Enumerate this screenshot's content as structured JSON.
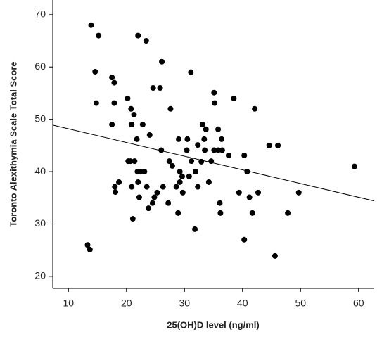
{
  "chart_data": {
    "type": "scatter",
    "xlabel": "25(OH)D level (ng/ml)",
    "ylabel": "Toronto Alexithymia Scale Total Score",
    "xlim": [
      7.3,
      62.7
    ],
    "ylim": [
      17.7,
      72.8
    ],
    "xticks": [
      10,
      20,
      30,
      40,
      50,
      60
    ],
    "yticks": [
      20,
      30,
      40,
      50,
      60,
      70
    ],
    "color": "#000000",
    "x": [
      13.9,
      15.2,
      14.6,
      14.8,
      17.5,
      17.9,
      17.9,
      17.5,
      13.3,
      13.7,
      18.0,
      18.1,
      18.7,
      20.2,
      20.8,
      20.9,
      21.3,
      20.3,
      20.7,
      21.4,
      20.9,
      21.1,
      22.0,
      23.4,
      21.8,
      22.8,
      24.0,
      21.9,
      22.4,
      23.1,
      22.0,
      22.2,
      23.5,
      23.8,
      24.5,
      24.8,
      25.3,
      24.6,
      25.8,
      26.1,
      26.0,
      26.3,
      27.2,
      27.6,
      27.4,
      27.9,
      28.6,
      28.9,
      29.0,
      29.2,
      29.2,
      29.6,
      29.7,
      30.5,
      30.4,
      30.8,
      31.1,
      31.2,
      31.9,
      32.3,
      31.8,
      32.3,
      32.9,
      33.1,
      33.7,
      33.4,
      33.5,
      34.2,
      34.6,
      35.2,
      35.1,
      35.1,
      35.8,
      35.8,
      36.4,
      36.1,
      36.2,
      36.5,
      37.6,
      38.5,
      39.4,
      40.3,
      40.3,
      40.8,
      41.2,
      41.7,
      42.1,
      42.7,
      44.6,
      46.1,
      45.6,
      47.8,
      49.7,
      59.3
    ],
    "y": [
      68.0,
      66.0,
      59.1,
      53.1,
      58.0,
      57.0,
      53.1,
      49.0,
      26.0,
      25.1,
      37.1,
      36.1,
      38.0,
      54.0,
      52.0,
      49.0,
      50.9,
      42.0,
      42.0,
      42.0,
      37.1,
      31.0,
      66.0,
      65.0,
      46.2,
      49.0,
      47.0,
      40.0,
      40.0,
      40.0,
      38.0,
      35.1,
      37.1,
      33.0,
      34.0,
      35.1,
      36.0,
      56.0,
      56.0,
      61.0,
      44.1,
      37.1,
      34.0,
      52.0,
      42.0,
      41.1,
      37.1,
      32.1,
      46.2,
      40.0,
      38.0,
      39.1,
      36.0,
      46.2,
      44.1,
      39.1,
      59.0,
      42.0,
      40.0,
      45.1,
      29.0,
      37.1,
      41.9,
      49.0,
      48.1,
      46.2,
      44.1,
      38.0,
      42.0,
      53.1,
      55.1,
      44.1,
      48.1,
      44.1,
      46.2,
      34.0,
      32.1,
      44.1,
      43.1,
      54.0,
      36.0,
      43.1,
      27.0,
      40.0,
      35.1,
      32.1,
      52.0,
      36.0,
      45.0,
      45.0,
      23.9,
      32.1,
      36.0,
      41.0
    ],
    "fit_line": {
      "x": [
        7.3,
        62.7
      ],
      "y": [
        48.9,
        34.4
      ]
    }
  }
}
